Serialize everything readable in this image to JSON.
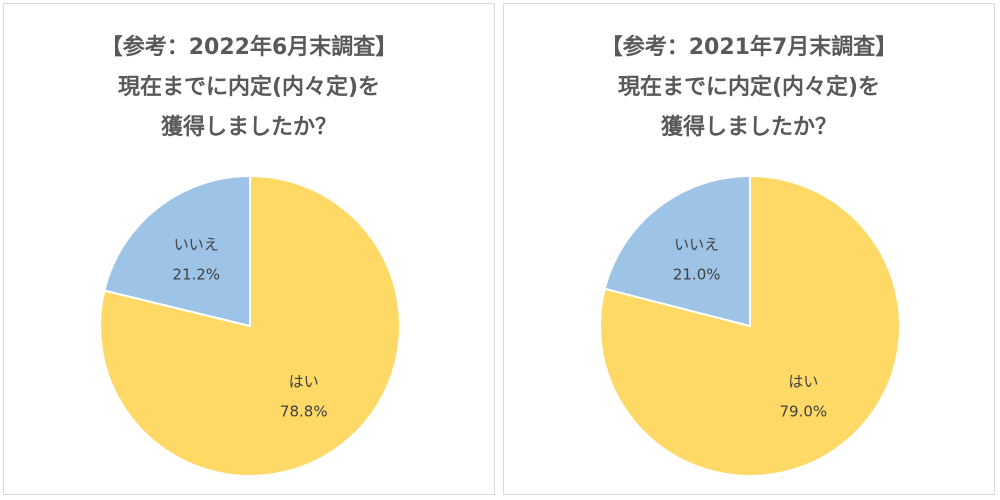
{
  "chart_data": [
    {
      "type": "pie",
      "title_lines": [
        "【参考：2022年6月末調査】",
        "現在までに内定(内々定)を",
        "獲得しましたか？"
      ],
      "slices": [
        {
          "label": "はい",
          "value": 78.8,
          "value_label": "78.8%",
          "color": "#FFD966"
        },
        {
          "label": "いいえ",
          "value": 21.2,
          "value_label": "21.2%",
          "color": "#9DC3E6"
        }
      ]
    },
    {
      "type": "pie",
      "title_lines": [
        "【参考：2021年7月末調査】",
        "現在までに内定(内々定)を",
        "獲得しましたか？"
      ],
      "slices": [
        {
          "label": "はい",
          "value": 79.0,
          "value_label": "79.0%",
          "color": "#FFD966"
        },
        {
          "label": "いいえ",
          "value": 21.0,
          "value_label": "21.0%",
          "color": "#9DC3E6"
        }
      ]
    }
  ]
}
